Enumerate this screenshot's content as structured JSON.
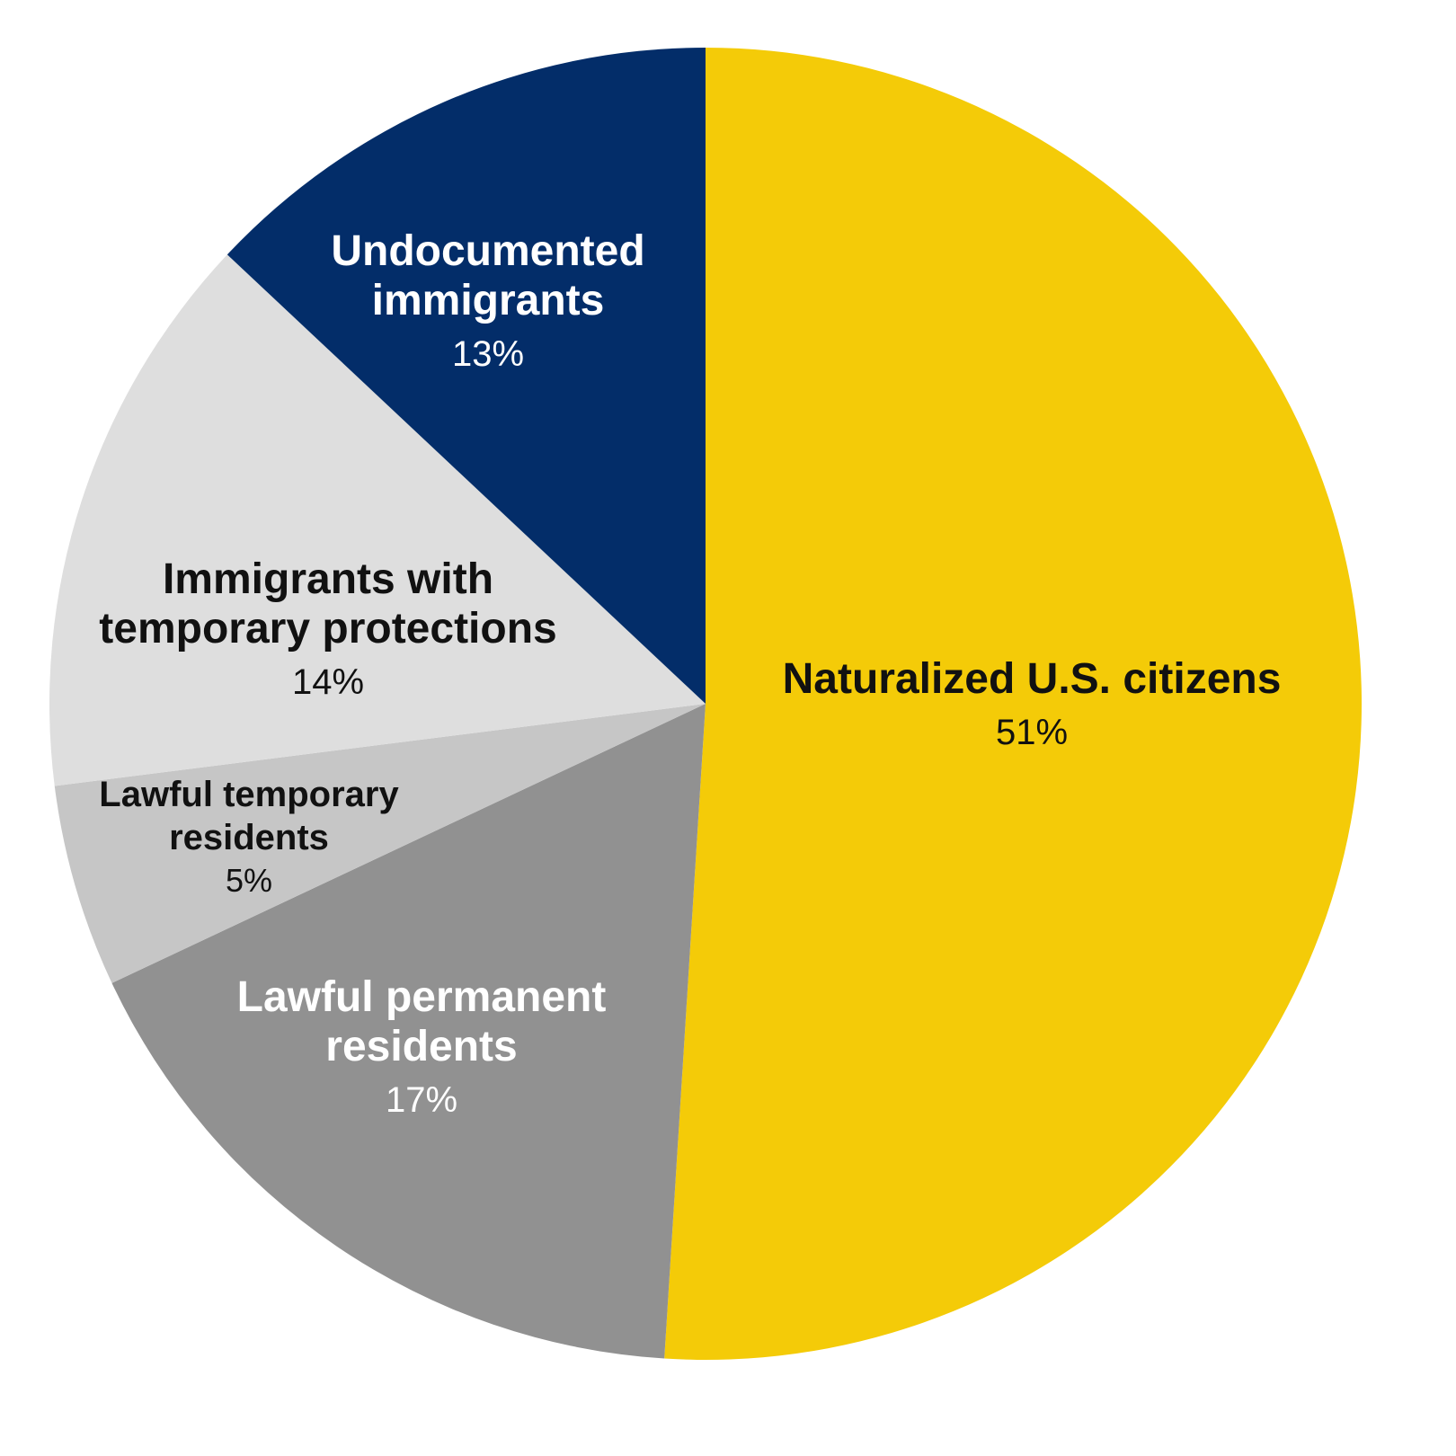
{
  "chart_data": {
    "type": "pie",
    "categories": [
      "Naturalized U.S. citizens",
      "Lawful permanent residents",
      "Lawful temporary residents",
      "Immigrants with temporary protections",
      "Undocumented immigrants"
    ],
    "values": [
      51,
      17,
      5,
      14,
      13
    ],
    "value_labels": [
      "51%",
      "17%",
      "5%",
      "14%",
      "13%"
    ],
    "colors": [
      "#f4cb08",
      "#919191",
      "#c6c6c6",
      "#dedede",
      "#032d69"
    ]
  }
}
